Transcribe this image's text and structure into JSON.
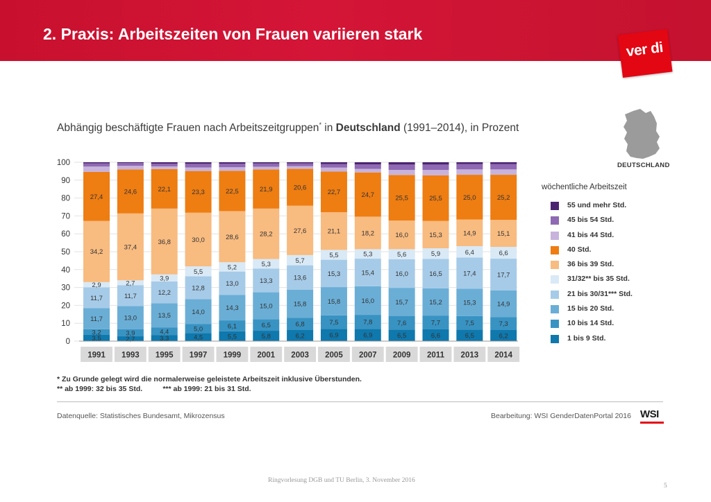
{
  "slide": {
    "title": "2. Praxis: Arbeitszeiten von Frauen variieren stark",
    "logo": "ver di",
    "footer": "Ringvorlesung DGB und TU Berlin, 3. November 2016",
    "page_number": "5"
  },
  "chart_data": {
    "type": "bar",
    "stacked": true,
    "title_part1": "Abhängig beschäftigte Frauen nach Arbeitszeitgruppen",
    "title_sup": "*",
    "title_part2": " in ",
    "title_bold": "Deutschland",
    "title_part3": " (1991–2014), in Prozent",
    "legend_title": "wöchentliche Arbeitszeit",
    "map_label": "DEUTSCHLAND",
    "ylim": [
      0,
      100
    ],
    "yticks": [
      0,
      10,
      20,
      30,
      40,
      50,
      60,
      70,
      80,
      90,
      100
    ],
    "categories": [
      "1991",
      "1993",
      "1995",
      "1997",
      "1999",
      "2001",
      "2003",
      "2005",
      "2007",
      "2009",
      "2011",
      "2013",
      "2014"
    ],
    "series": [
      {
        "name": "1 bis 9 Std.",
        "color": "#0f78ad",
        "values": [
          3.5,
          2.7,
          3.3,
          4.5,
          5.5,
          5.8,
          6.2,
          6.9,
          6.9,
          6.5,
          6.6,
          6.5,
          6.2
        ]
      },
      {
        "name": "10 bis 14 Std.",
        "color": "#3893c3",
        "values": [
          3.2,
          3.9,
          4.4,
          5.0,
          6.1,
          6.5,
          6.8,
          7.5,
          7.8,
          7.6,
          7.7,
          7.5,
          7.3
        ]
      },
      {
        "name": "15 bis 20 Std.",
        "color": "#6aaed6",
        "values": [
          11.7,
          13.0,
          13.5,
          14.0,
          14.3,
          15.0,
          15.8,
          15.8,
          16.0,
          15.7,
          15.2,
          15.3,
          14.9
        ]
      },
      {
        "name": "21 bis 30/31*** Std.",
        "color": "#a6cbe8",
        "values": [
          11.7,
          11.7,
          12.2,
          12.8,
          13.0,
          13.3,
          13.6,
          15.3,
          15.4,
          16.0,
          16.5,
          17.4,
          17.7
        ]
      },
      {
        "name": "31/32** bis 35 Std.",
        "color": "#d9e9f6",
        "values": [
          2.9,
          2.7,
          3.9,
          5.5,
          5.2,
          5.3,
          5.7,
          5.5,
          5.3,
          5.6,
          5.9,
          6.4,
          6.6
        ]
      },
      {
        "name": "36 bis 39 Std.",
        "color": "#f8bb80",
        "values": [
          34.2,
          37.4,
          36.8,
          30.0,
          28.6,
          28.2,
          27.6,
          21.1,
          18.2,
          16.0,
          15.3,
          14.9,
          15.1
        ]
      },
      {
        "name": "40 Std.",
        "color": "#ee7d12",
        "values": [
          27.4,
          24.6,
          22.1,
          23.3,
          22.5,
          21.9,
          20.6,
          22.7,
          24.7,
          25.5,
          25.5,
          25.0,
          25.2
        ]
      },
      {
        "name": "41 bis 44 Std.",
        "color": "#c7b3db",
        "values": [
          3.0,
          2.0,
          1.5,
          2.0,
          2.0,
          1.5,
          1.5,
          2.2,
          2.0,
          2.8,
          3.0,
          3.0,
          3.0
        ]
      },
      {
        "name": "45 bis 54 Std.",
        "color": "#8f69b3",
        "values": [
          1.8,
          1.6,
          1.5,
          2.0,
          2.0,
          1.8,
          1.6,
          2.0,
          2.5,
          3.0,
          3.0,
          3.0,
          3.0
        ]
      },
      {
        "name": "55 und mehr Std.",
        "color": "#4b2470",
        "values": [
          0.6,
          0.4,
          0.8,
          0.9,
          0.8,
          0.7,
          0.6,
          1.0,
          1.2,
          1.3,
          1.3,
          1.0,
          1.0
        ]
      }
    ],
    "label_series": [
      "1 bis 9 Std.",
      "10 bis 14 Std.",
      "15 bis 20 Std.",
      "21 bis 30/31*** Std.",
      "31/32** bis 35 Std.",
      "36 bis 39 Std.",
      "40 Std."
    ],
    "footnote1": "*  Zu Grunde gelegt wird die normalerweise geleistete Arbeitszeit inklusive Überstunden.",
    "footnote2": "** ab 1999: 32 bis 35 Std.          *** ab 1999: 21 bis 31 Std.",
    "source": "Datenquelle: Statistisches Bundesamt, Mikrozensus",
    "credit": "Bearbeitung: WSI GenderDatenPortal 2016",
    "credit_logo": "WSI"
  }
}
